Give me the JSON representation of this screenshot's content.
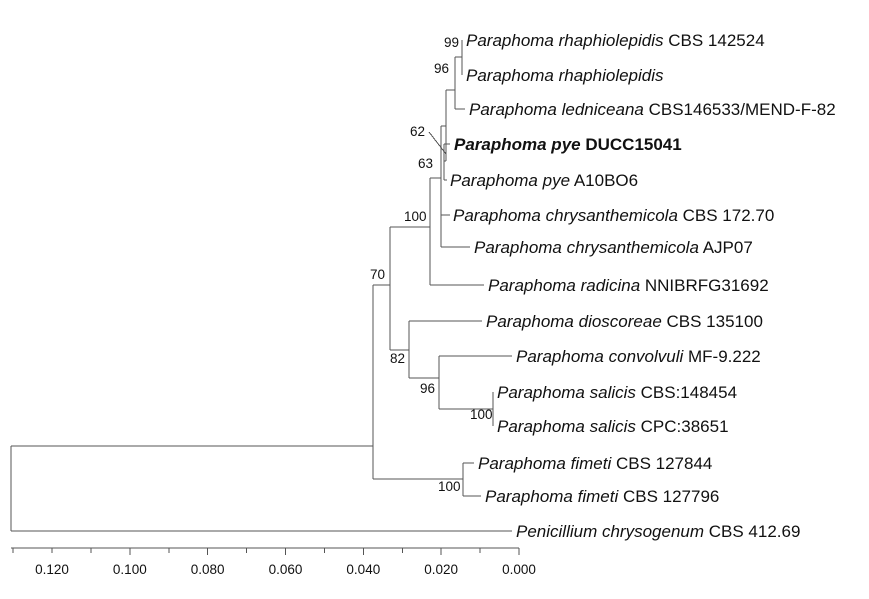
{
  "tree": {
    "taxa": [
      {
        "id": "t1",
        "genus": "Paraphoma rhaphiolepidis",
        "strain": "CBS 142524",
        "bold": false
      },
      {
        "id": "t2",
        "genus": "Paraphoma rhaphiolepidis",
        "strain": "",
        "bold": false
      },
      {
        "id": "t3",
        "genus": "Paraphoma ledniceana",
        "strain": "CBS146533/MEND-F-82",
        "bold": false
      },
      {
        "id": "t4",
        "genus": "Paraphoma pye",
        "strain": "DUCC15041",
        "bold": true
      },
      {
        "id": "t5",
        "genus": "Paraphoma pye",
        "strain": "A10BO6",
        "bold": false
      },
      {
        "id": "t6",
        "genus": "Paraphoma chrysanthemicola",
        "strain": "CBS 172.70",
        "bold": false
      },
      {
        "id": "t7",
        "genus": "Paraphoma chrysanthemicola",
        "strain": "AJP07",
        "bold": false
      },
      {
        "id": "t8",
        "genus": "Paraphoma radicina",
        "strain": "NNIBRFG31692",
        "bold": false
      },
      {
        "id": "t9",
        "genus": "Paraphoma dioscoreae",
        "strain": "CBS 135100",
        "bold": false
      },
      {
        "id": "t10",
        "genus": "Paraphoma convolvuli",
        "strain": "MF-9.222",
        "bold": false
      },
      {
        "id": "t11",
        "genus": "Paraphoma salicis",
        "strain": "CBS:148454",
        "bold": false
      },
      {
        "id": "t12",
        "genus": "Paraphoma salicis",
        "strain": "CPC:38651",
        "bold": false
      },
      {
        "id": "t13",
        "genus": "Paraphoma fimeti",
        "strain": "CBS 127844",
        "bold": false
      },
      {
        "id": "t14",
        "genus": "Paraphoma fimeti",
        "strain": "CBS 127796",
        "bold": false
      },
      {
        "id": "t15",
        "genus": "Penicillium chrysogenum",
        "strain": "CBS 412.69",
        "bold": false
      }
    ],
    "bootstrap": [
      {
        "id": "b99",
        "value": "99"
      },
      {
        "id": "b96a",
        "value": "96"
      },
      {
        "id": "b62",
        "value": "62"
      },
      {
        "id": "b63",
        "value": "63"
      },
      {
        "id": "b100a",
        "value": "100"
      },
      {
        "id": "b70",
        "value": "70"
      },
      {
        "id": "b82",
        "value": "82"
      },
      {
        "id": "b96b",
        "value": "96"
      },
      {
        "id": "b100b",
        "value": "100"
      },
      {
        "id": "b100c",
        "value": "100"
      }
    ],
    "scale_axis": {
      "ticks": [
        "0.120",
        "0.100",
        "0.080",
        "0.060",
        "0.040",
        "0.020",
        "0.000"
      ],
      "tick_values": [
        0.12,
        0.1,
        0.08,
        0.06,
        0.04,
        0.02,
        0.0
      ]
    },
    "colors": {
      "line": "#555555",
      "text": "#111111"
    }
  }
}
